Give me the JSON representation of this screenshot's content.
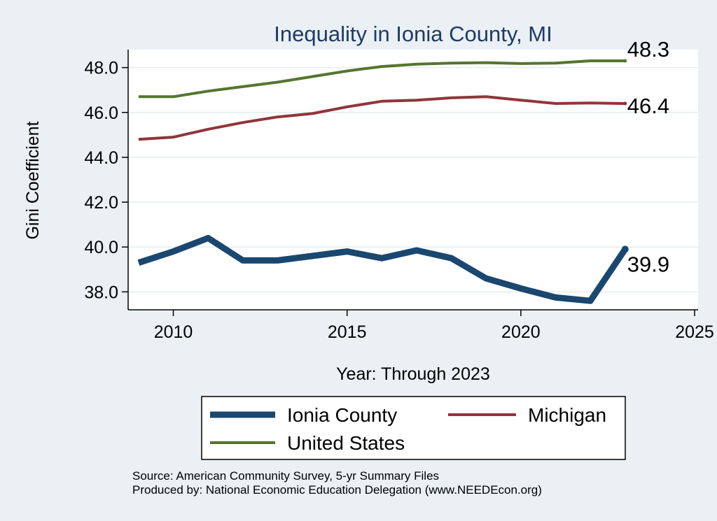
{
  "chart_data": {
    "type": "line",
    "title": "Inequality in Ionia County, MI",
    "xlabel": "Year: Through 2023",
    "ylabel": "Gini Coefficient",
    "xlim": [
      2008.7,
      2025.1
    ],
    "ylim": [
      37.2,
      48.8
    ],
    "xticks": [
      2010,
      2015,
      2020,
      2025
    ],
    "xtick_labels": [
      "2010",
      "2015",
      "2020",
      "2025"
    ],
    "yticks": [
      38,
      40,
      42,
      44,
      46,
      48
    ],
    "ytick_labels": [
      "38.0",
      "40.0",
      "42.0",
      "44.0",
      "46.0",
      "48.0"
    ],
    "grid": true,
    "legend_position": "bottom",
    "x": [
      2009,
      2010,
      2011,
      2012,
      2013,
      2014,
      2015,
      2016,
      2017,
      2018,
      2019,
      2020,
      2021,
      2022,
      2023
    ],
    "series": [
      {
        "name": "Ionia County",
        "color": "#1a476f",
        "end_label": "39.9",
        "values": [
          39.3,
          39.8,
          40.4,
          39.4,
          39.4,
          39.6,
          39.8,
          39.5,
          39.85,
          39.5,
          38.6,
          38.15,
          37.75,
          37.6,
          39.9
        ]
      },
      {
        "name": "Michigan",
        "color": "#90353b",
        "end_label": "46.4",
        "values": [
          44.8,
          44.9,
          45.25,
          45.55,
          45.8,
          45.95,
          46.25,
          46.5,
          46.55,
          46.65,
          46.7,
          46.55,
          46.4,
          46.42,
          46.4
        ]
      },
      {
        "name": "United States",
        "color": "#55752f",
        "end_label": "48.3",
        "values": [
          46.7,
          46.7,
          46.95,
          47.15,
          47.35,
          47.6,
          47.85,
          48.05,
          48.15,
          48.2,
          48.22,
          48.18,
          48.2,
          48.3,
          48.3
        ]
      }
    ],
    "source_lines": [
      "Source: American Community Survey, 5-yr Summary Files",
      "Produced by: National Economic Education Delegation (www.NEEDEcon.org)"
    ]
  }
}
